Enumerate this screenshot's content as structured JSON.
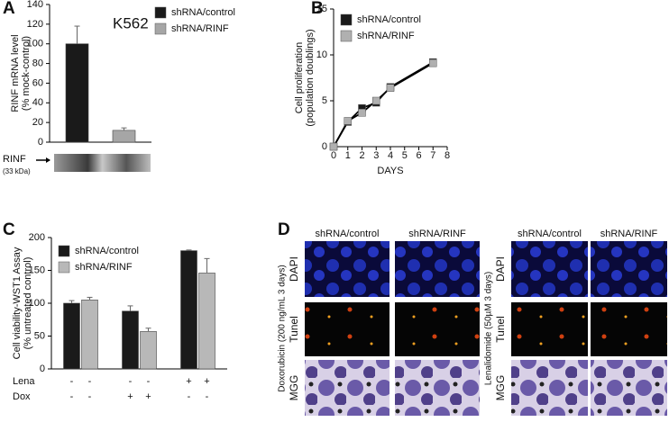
{
  "panels": [
    "A",
    "B",
    "C",
    "D"
  ],
  "chart_data": [
    {
      "type": "bar",
      "annotation": "K562",
      "ylabel": [
        "RINF mRNA level",
        "(% mock-control)"
      ],
      "categories": [
        null
      ],
      "ylim": [
        0,
        140
      ],
      "yticks": [
        0,
        20,
        40,
        60,
        80,
        100,
        120,
        140
      ],
      "series": [
        {
          "name": "shRNA/control",
          "color": "#1a1a1a",
          "values": [
            100
          ],
          "errors": [
            18
          ]
        },
        {
          "name": "shRNA/RINF",
          "color": "#a6a6a6",
          "values": [
            12
          ],
          "errors": [
            2.5
          ]
        }
      ],
      "blot_label": "RINF",
      "blot_sublabel": "(33 kDa)"
    },
    {
      "type": "line",
      "xlabel": "DAYS",
      "ylabel": [
        "Cell proliferation",
        "(population doublings)"
      ],
      "x": [
        0,
        1,
        2,
        3,
        4,
        7
      ],
      "xlim": [
        0,
        8
      ],
      "xticks": [
        0,
        1,
        2,
        3,
        4,
        5,
        6,
        7,
        8
      ],
      "ylim": [
        0,
        15
      ],
      "yticks": [
        0,
        5,
        10,
        15
      ],
      "line_color": "#000000",
      "series": [
        {
          "name": "shRNA/control",
          "color": "#1a1a1a",
          "values": [
            0,
            2.7,
            4.2,
            4.8,
            6.5,
            9.2
          ]
        },
        {
          "name": "shRNA/RINF",
          "color": "#b0b0b0",
          "values": [
            0,
            2.8,
            3.7,
            5.0,
            6.4,
            9.1
          ]
        }
      ]
    },
    {
      "type": "bar",
      "ylabel": [
        "Cell viability-WST1 Assay",
        "(% untreated control)"
      ],
      "categories": [
        null,
        null,
        null
      ],
      "ylim": [
        0,
        200
      ],
      "yticks": [
        0,
        50,
        100,
        150,
        200
      ],
      "series": [
        {
          "name": "shRNA/control",
          "color": "#1a1a1a",
          "values": [
            100,
            88,
            180
          ],
          "errors": [
            4,
            8,
            1
          ]
        },
        {
          "name": "shRNA/RINF",
          "color": "#b8b8b8",
          "values": [
            105,
            57,
            146
          ],
          "errors": [
            4,
            5,
            22
          ]
        }
      ],
      "conditions": [
        {
          "name": "Lena",
          "values": [
            "-",
            "-",
            "-",
            "-",
            "+",
            "+"
          ]
        },
        {
          "name": "Dox",
          "values": [
            "-",
            "-",
            "+",
            "+",
            "-",
            "-"
          ]
        }
      ]
    }
  ],
  "panel_d": {
    "groups": [
      {
        "treatment": "Doxorubicin (200 ng/mL 3 days)",
        "columns": [
          "shRNA/control",
          "shRNA/RINF"
        ],
        "rows": [
          "DAPI",
          "Tunel",
          "MGG"
        ]
      },
      {
        "treatment": "Lenalidomide (50µM 3 days)",
        "columns": [
          "shRNA/control",
          "shRNA/RINF"
        ],
        "rows": [
          "DAPI",
          "Tunel",
          "MGG"
        ]
      }
    ]
  }
}
